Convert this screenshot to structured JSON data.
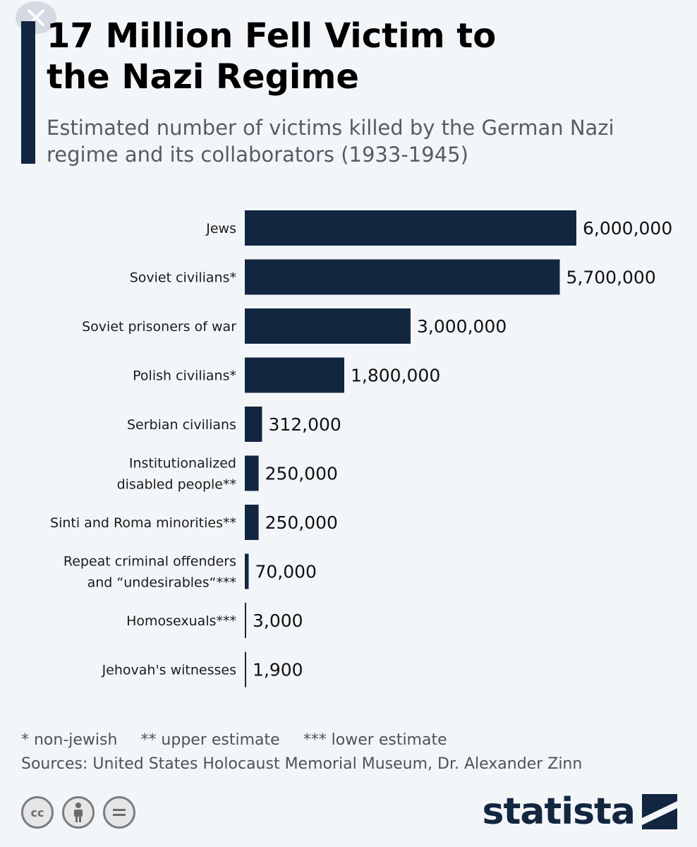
{
  "title": "17 Million Fell Victim to\nthe Nazi Regime",
  "subtitle": "Estimated number of victims killed by the German Nazi\nregime and its collaborators (1933-1945)",
  "chart_data": {
    "type": "bar",
    "orientation": "horizontal",
    "categories": [
      "Jews",
      "Soviet civilians*",
      "Soviet prisoners of war",
      "Polish civilians*",
      "Serbian civilians",
      "Institutionalized disabled people**",
      "Sinti and Roma minorities**",
      "Repeat criminal offenders and “undesirables“***",
      "Homosexuals***",
      "Jehovah's witnesses"
    ],
    "label_lines": [
      [
        "Jews"
      ],
      [
        "Soviet civilians*"
      ],
      [
        "Soviet prisoners of war"
      ],
      [
        "Polish civilians*"
      ],
      [
        "Serbian civilians"
      ],
      [
        "Institutionalized",
        "disabled people**"
      ],
      [
        "Sinti and Roma minorities**"
      ],
      [
        "Repeat criminal offenders",
        "and “undesirables“***"
      ],
      [
        "Homosexuals***"
      ],
      [
        "Jehovah's witnesses"
      ]
    ],
    "values": [
      6000000,
      5700000,
      3000000,
      1800000,
      312000,
      250000,
      250000,
      70000,
      3000,
      1900
    ],
    "value_labels": [
      "6,000,000",
      "5,700,000",
      "3,000,000",
      "1,800,000",
      "312,000",
      "250,000",
      "250,000",
      "70,000",
      "3,000",
      "1,900"
    ],
    "xlim": [
      0,
      6000000
    ],
    "grid": false,
    "bar_color": "#122640"
  },
  "legend": {
    "notes": [
      "* non-jewish",
      "** upper estimate",
      "*** lower estimate"
    ]
  },
  "sources": "Sources: United States Holocaust Memorial Museum, Dr. Alexander Zinn",
  "brand": {
    "name": "statista"
  },
  "icons": {
    "close": "close-icon",
    "license": [
      "cc-icon",
      "attribution-icon",
      "no-derivatives-icon"
    ]
  }
}
